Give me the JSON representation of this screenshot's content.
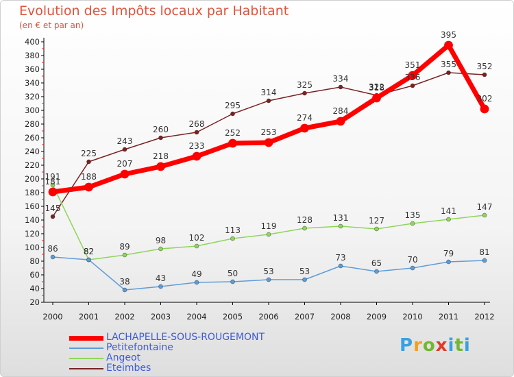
{
  "title": "Evolution des Impôts locaux par Habitant",
  "subtitle": "(en € et par an)",
  "logo": {
    "text": "Proxiti"
  },
  "chart_data": {
    "type": "line",
    "x": [
      "2000",
      "2001",
      "2002",
      "2003",
      "2004",
      "2005",
      "2006",
      "2007",
      "2008",
      "2009",
      "2010",
      "2011",
      "2012"
    ],
    "y_ticks": [
      20,
      40,
      60,
      80,
      100,
      120,
      140,
      160,
      180,
      200,
      220,
      240,
      260,
      280,
      300,
      320,
      340,
      360,
      380,
      400
    ],
    "ylim": [
      20,
      400
    ],
    "grid": false,
    "legend_position": "bottom-left",
    "series": [
      {
        "name": "Eteimbes",
        "color": "#7a2222",
        "values": [
          145,
          225,
          243,
          260,
          268,
          295,
          314,
          325,
          334,
          322,
          336,
          355,
          352
        ]
      },
      {
        "name": "Angeot",
        "color": "#8ed65a",
        "values": [
          191,
          82,
          89,
          98,
          102,
          113,
          119,
          128,
          131,
          127,
          135,
          141,
          147
        ]
      },
      {
        "name": "Petitefontaine",
        "color": "#5d9cd8",
        "values": [
          86,
          82,
          38,
          43,
          49,
          50,
          53,
          53,
          73,
          65,
          70,
          79,
          81
        ]
      },
      {
        "name": "LACHAPELLE-SOUS-ROUGEMONT",
        "color": "#ff0000",
        "values": [
          181,
          188,
          207,
          218,
          233,
          252,
          253,
          274,
          284,
          318,
          351,
          395,
          302
        ]
      }
    ],
    "legend_order": [
      "LACHAPELLE-SOUS-ROUGEMONT",
      "Petitefontaine",
      "Angeot",
      "Eteimbes"
    ]
  }
}
